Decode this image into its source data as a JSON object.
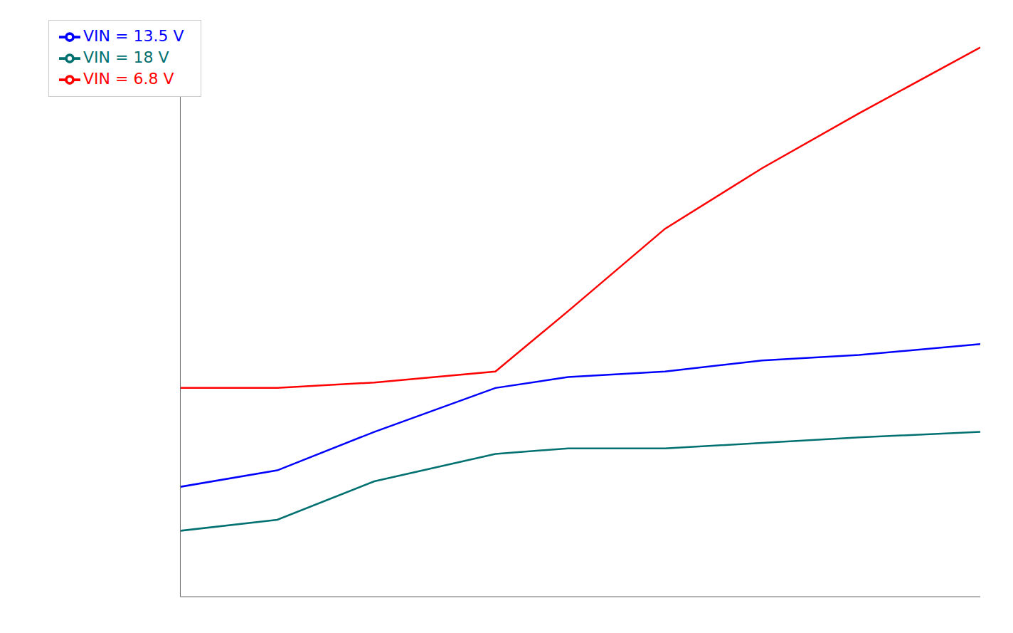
{
  "chart_data": {
    "type": "line",
    "x": [
      -40,
      -20,
      0,
      25,
      40,
      60,
      80,
      100,
      125
    ],
    "series": [
      {
        "name": "VIN = 6.8 V",
        "color": "#ff0000",
        "values": [
          0.38,
          0.38,
          0.39,
          0.41,
          0.52,
          0.67,
          0.78,
          0.88,
          1.0
        ]
      },
      {
        "name": "VIN = 13.5 V",
        "color": "#0000ff",
        "values": [
          0.2,
          0.23,
          0.3,
          0.38,
          0.4,
          0.41,
          0.43,
          0.44,
          0.46
        ]
      },
      {
        "name": "VIN = 18 V",
        "color": "#007070",
        "values": [
          0.12,
          0.14,
          0.21,
          0.26,
          0.27,
          0.27,
          0.28,
          0.29,
          0.3
        ]
      }
    ],
    "xlim": [
      -40,
      125
    ],
    "ylim": [
      0.0,
      1.05
    ],
    "tick_labels": false,
    "grid": false,
    "legend": "upper left"
  }
}
